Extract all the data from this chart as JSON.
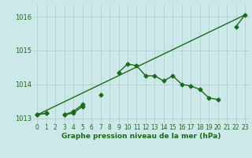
{
  "xlabel": "Graphe pression niveau de la mer (hPa)",
  "x": [
    0,
    1,
    2,
    3,
    4,
    5,
    6,
    7,
    8,
    9,
    10,
    11,
    12,
    13,
    14,
    15,
    16,
    17,
    18,
    19,
    20,
    21,
    22,
    23
  ],
  "line1": [
    1013.1,
    1013.15,
    null,
    1013.1,
    1013.2,
    1013.4,
    null,
    null,
    null,
    1014.35,
    1014.6,
    1014.55,
    1014.25,
    1014.25,
    1014.1,
    1014.25,
    1014.0,
    1013.95,
    1013.85,
    1013.6,
    1013.55,
    null,
    1015.7,
    1016.05
  ],
  "line2": [
    1013.1,
    1013.15,
    null,
    1013.1,
    1013.15,
    1013.35,
    null,
    1013.7,
    null,
    null,
    null,
    null,
    null,
    null,
    null,
    null,
    null,
    null,
    null,
    null,
    null,
    null,
    null,
    null
  ],
  "straight_line": [
    [
      0,
      23
    ],
    [
      1013.1,
      1016.05
    ]
  ],
  "background_color": "#cde8e8",
  "grid_color": "#aacccc",
  "line_color": "#1a6b1a",
  "ylim": [
    1012.85,
    1016.35
  ],
  "xlim": [
    -0.5,
    23.5
  ],
  "yticks": [
    1013,
    1014,
    1015,
    1016
  ],
  "xticks": [
    0,
    1,
    2,
    3,
    4,
    5,
    6,
    7,
    8,
    9,
    10,
    11,
    12,
    13,
    14,
    15,
    16,
    17,
    18,
    19,
    20,
    21,
    22,
    23
  ],
  "marker": "D",
  "markersize": 2.5,
  "linewidth": 1.0,
  "tick_fontsize": 5.5,
  "xlabel_fontsize": 6.5
}
